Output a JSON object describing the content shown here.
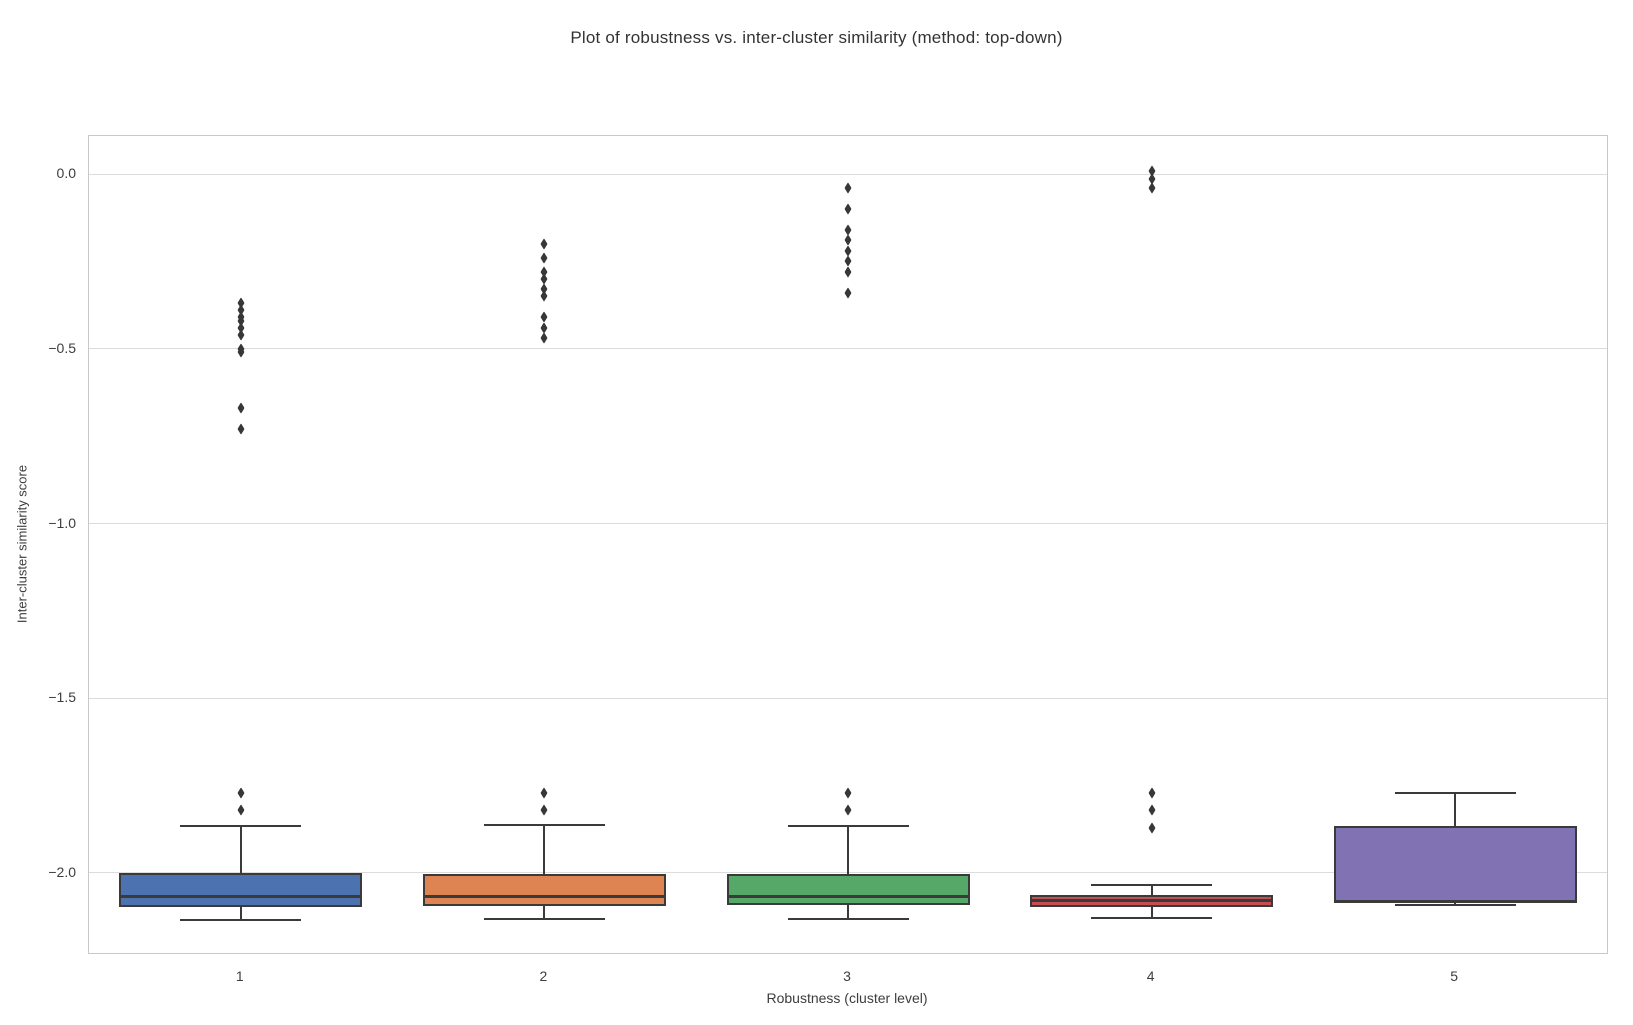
{
  "chart_data": {
    "type": "box",
    "title": "Plot of robustness vs. inter-cluster similarity (method: top-down)",
    "xlabel": "Robustness (cluster level)",
    "ylabel": "Inter-cluster similarity score",
    "categories": [
      "1",
      "2",
      "3",
      "4",
      "5"
    ],
    "ylim": [
      -2.229,
      0.109
    ],
    "yticks": [
      0.0,
      -0.5,
      -1.0,
      -1.5,
      -2.0
    ],
    "ytick_labels": [
      "0.0",
      "−0.5",
      "−1.0",
      "−1.5",
      "−2.0"
    ],
    "grid": "horizontal",
    "legend": "none",
    "grid_color": "#dcdcdc",
    "line_color": "#3a3a3a",
    "series": [
      {
        "category": "1",
        "color": "#4C72B0",
        "whisker_low": -2.135,
        "q1": -2.097,
        "median": -2.066,
        "q3": -2.0,
        "whisker_high": -1.866,
        "outliers": [
          -0.37,
          -0.39,
          -0.41,
          -0.42,
          -0.44,
          -0.46,
          -0.5,
          -0.51,
          -0.67,
          -0.73,
          -1.77,
          -1.82
        ]
      },
      {
        "category": "2",
        "color": "#DD8452",
        "whisker_low": -2.133,
        "q1": -2.094,
        "median": -2.066,
        "q3": -2.002,
        "whisker_high": -1.864,
        "outliers": [
          -0.2,
          -0.24,
          -0.28,
          -0.3,
          -0.33,
          -0.35,
          -0.41,
          -0.44,
          -0.47,
          -1.77,
          -1.82
        ]
      },
      {
        "category": "3",
        "color": "#55A868",
        "whisker_low": -2.133,
        "q1": -2.092,
        "median": -2.066,
        "q3": -2.002,
        "whisker_high": -1.866,
        "outliers": [
          -0.04,
          -0.1,
          -0.16,
          -0.19,
          -0.22,
          -0.25,
          -0.28,
          -0.34,
          -1.77,
          -1.82
        ]
      },
      {
        "category": "4",
        "color": "#C44E52",
        "whisker_low": -2.128,
        "q1": -2.096,
        "median": -2.08,
        "q3": -2.063,
        "whisker_high": -2.034,
        "outliers": [
          0.008,
          -0.015,
          -0.04,
          -1.77,
          -1.82,
          -1.87
        ]
      },
      {
        "category": "5",
        "color": "#8172B3",
        "whisker_low": -2.093,
        "q1": -2.086,
        "median": -2.082,
        "q3": -1.866,
        "whisker_high": -1.77,
        "outliers": []
      }
    ]
  }
}
